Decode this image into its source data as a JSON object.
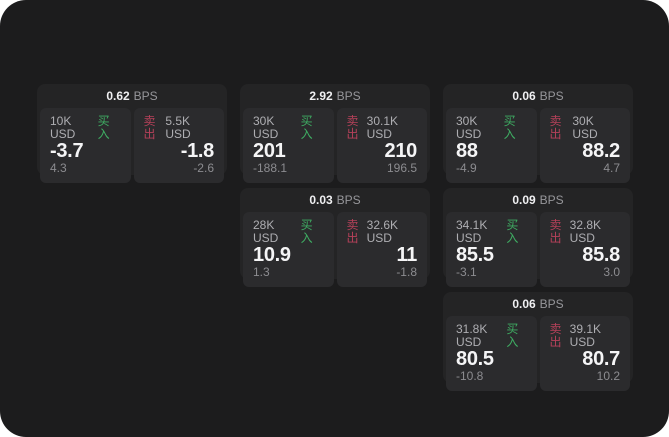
{
  "labels": {
    "bps": "BPS",
    "buy": "买入",
    "sell": "卖出"
  },
  "colors": {
    "panel_bg": "#1c1c1d",
    "card_bg": "#242425",
    "tile_bg": "#2b2b2d",
    "text_primary": "#f5f5f6",
    "text_muted": "#8c8c90",
    "buy_green": "#3fae63",
    "sell_red": "#b6415a"
  },
  "cards": [
    {
      "bps": "0.62",
      "buy": {
        "amount": "10K USD",
        "price": "-3.7",
        "delta": "4.3"
      },
      "sell": {
        "amount": "5.5K USD",
        "price": "-1.8",
        "delta": "-2.6"
      }
    },
    {
      "bps": "2.92",
      "buy": {
        "amount": "30K USD",
        "price": "201",
        "delta": "-188.1"
      },
      "sell": {
        "amount": "30.1K USD",
        "price": "210",
        "delta": "196.5"
      }
    },
    {
      "bps": "0.06",
      "buy": {
        "amount": "30K USD",
        "price": "88",
        "delta": "-4.9"
      },
      "sell": {
        "amount": "30K USD",
        "price": "88.2",
        "delta": "4.7"
      }
    },
    {
      "bps": "0.03",
      "buy": {
        "amount": "28K USD",
        "price": "10.9",
        "delta": "1.3"
      },
      "sell": {
        "amount": "32.6K USD",
        "price": "11",
        "delta": "-1.8"
      }
    },
    {
      "bps": "0.09",
      "buy": {
        "amount": "34.1K USD",
        "price": "85.5",
        "delta": "-3.1"
      },
      "sell": {
        "amount": "32.8K USD",
        "price": "85.8",
        "delta": "3.0"
      }
    },
    {
      "bps": "0.06",
      "buy": {
        "amount": "31.8K USD",
        "price": "80.5",
        "delta": "-10.8"
      },
      "sell": {
        "amount": "39.1K USD",
        "price": "80.7",
        "delta": "10.2"
      }
    }
  ]
}
